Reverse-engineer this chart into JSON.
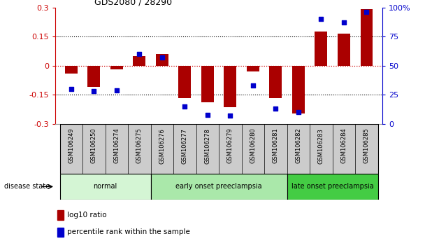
{
  "title": "GDS2080 / 28290",
  "samples": [
    "GSM106249",
    "GSM106250",
    "GSM106274",
    "GSM106275",
    "GSM106276",
    "GSM106277",
    "GSM106278",
    "GSM106279",
    "GSM106280",
    "GSM106281",
    "GSM106282",
    "GSM106283",
    "GSM106284",
    "GSM106285"
  ],
  "log10_ratio": [
    -0.04,
    -0.11,
    -0.02,
    0.05,
    0.06,
    -0.165,
    -0.19,
    -0.215,
    -0.03,
    -0.165,
    -0.245,
    0.175,
    0.165,
    0.29
  ],
  "percentile_rank": [
    30,
    28,
    29,
    60,
    57,
    15,
    8,
    7,
    33,
    13,
    10,
    90,
    87,
    96
  ],
  "groups": [
    {
      "label": "normal",
      "start": 0,
      "end": 3,
      "color": "#d4f5d4"
    },
    {
      "label": "early onset preeclampsia",
      "start": 4,
      "end": 9,
      "color": "#aae8aa"
    },
    {
      "label": "late onset preeclampsia",
      "start": 10,
      "end": 13,
      "color": "#44cc44"
    }
  ],
  "ylim_left": [
    -0.3,
    0.3
  ],
  "ylim_right": [
    0,
    100
  ],
  "yticks_left": [
    -0.3,
    -0.15,
    0,
    0.15,
    0.3
  ],
  "yticks_right": [
    0,
    25,
    50,
    75,
    100
  ],
  "ytick_labels_right": [
    "0",
    "25",
    "50",
    "75",
    "100%"
  ],
  "bar_color": "#aa0000",
  "dot_color": "#0000cc",
  "zero_line_color": "#cc0000",
  "grid_color": "#000000",
  "background_color": "#ffffff",
  "title_color": "#000000",
  "left_axis_color": "#cc0000",
  "right_axis_color": "#0000cc",
  "legend_items": [
    "log10 ratio",
    "percentile rank within the sample"
  ],
  "sample_box_color": "#cccccc",
  "bar_width": 0.55
}
